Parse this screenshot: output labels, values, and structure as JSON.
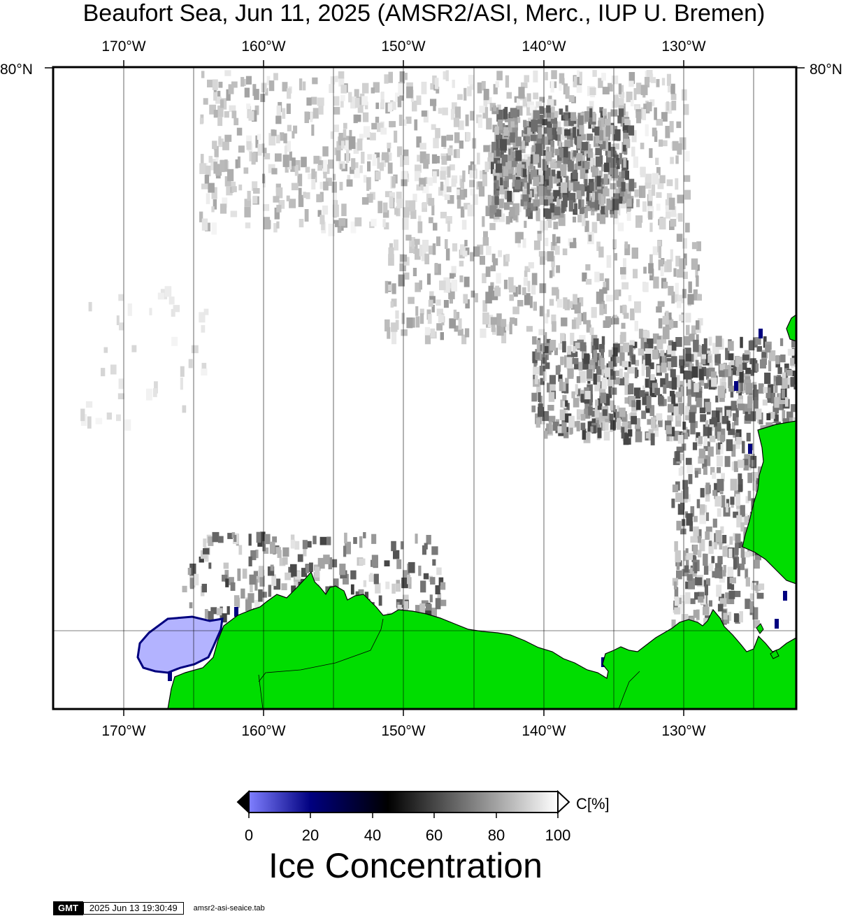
{
  "title": "Beaufort Sea, Jun 11, 2025 (AMSR2/ASI, Merc., IUP U. Bremen)",
  "lon_labels": [
    "170°W",
    "160°W",
    "150°W",
    "140°W",
    "130°W"
  ],
  "lat_label": "80°N",
  "colorbar": {
    "ticks": [
      "0",
      "20",
      "40",
      "60",
      "80",
      "100"
    ],
    "unit": "C[%]",
    "title": "Ice Concentration",
    "colors": [
      "#7f7fff",
      "#00007f",
      "#000000",
      "#ffffff"
    ]
  },
  "footer": {
    "logo": "GMT",
    "timestamp": "2025 Jun 13 19:30:49",
    "file": "amsr2-asi-seaice.tab"
  },
  "colors": {
    "land": "#00dd00",
    "low_ice": "#b3b3ff",
    "frame": "#000000"
  }
}
